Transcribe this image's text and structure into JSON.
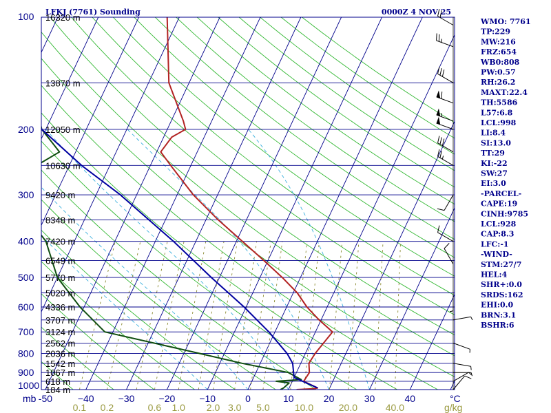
{
  "chart_data": {
    "type": "line",
    "title": "LFKJ (7761) Sounding",
    "time": "0000Z  4 NOV 25",
    "xlabel": "°C",
    "units_label": "mb",
    "mixing_ratio_units": "g/kg",
    "pressure_levels": [
      100,
      200,
      300,
      400,
      500,
      600,
      700,
      800,
      900,
      1000
    ],
    "temperature_ticks": [
      -50,
      -40,
      -30,
      -20,
      -10,
      0,
      10,
      20,
      30,
      40
    ],
    "temperature_tick_labels": [
      "-50",
      "−40",
      "−30",
      "−20",
      "−10",
      "0",
      "10",
      "20",
      "30",
      "40"
    ],
    "xlim_at_1000mb": [
      -51,
      51
    ],
    "mixing_ratio_labels": [
      "0.1",
      "0.2",
      "0.6",
      "1.0",
      "2.0",
      "3.0",
      "5.0",
      "10.0",
      "20.0",
      "40.0"
    ],
    "heights": [
      {
        "p": 100,
        "label": "16320 m"
      },
      {
        "p": 150,
        "label": "13870 m"
      },
      {
        "p": 200,
        "label": "12050 m"
      },
      {
        "p": 250,
        "label": "10630 m"
      },
      {
        "p": 300,
        "label": "9420 m"
      },
      {
        "p": 350,
        "label": "8348 m"
      },
      {
        "p": 400,
        "label": "7420 m"
      },
      {
        "p": 450,
        "label": "6549 m"
      },
      {
        "p": 500,
        "label": "5770 m"
      },
      {
        "p": 550,
        "label": "5020 m"
      },
      {
        "p": 600,
        "label": "4336 m"
      },
      {
        "p": 650,
        "label": "3707 m"
      },
      {
        "p": 700,
        "label": "3124 m"
      },
      {
        "p": 750,
        "label": "2562 m"
      },
      {
        "p": 800,
        "label": "2036 m"
      },
      {
        "p": 850,
        "label": "1542 m"
      },
      {
        "p": 900,
        "label": "1067 m"
      },
      {
        "p": 950,
        "label": "618 m"
      },
      {
        "p": 1000,
        "label": "184 m"
      }
    ],
    "series": [
      {
        "name": "temperature",
        "color": "#b22222",
        "points": [
          [
            1000,
            12
          ],
          [
            995,
            16
          ],
          [
            990,
            17
          ],
          [
            950,
            12.8
          ],
          [
            900,
            13.2
          ],
          [
            850,
            12
          ],
          [
            800,
            12.4
          ],
          [
            700,
            14.2
          ],
          [
            650,
            9.5
          ],
          [
            600,
            5
          ],
          [
            550,
            1
          ],
          [
            500,
            -4.5
          ],
          [
            450,
            -11
          ],
          [
            400,
            -18.5
          ],
          [
            350,
            -27
          ],
          [
            300,
            -36
          ],
          [
            250,
            -45
          ],
          [
            230,
            -49
          ],
          [
            210,
            -48
          ],
          [
            200,
            -45.5
          ],
          [
            190,
            -47
          ],
          [
            150,
            -55
          ],
          [
            100,
            -63
          ]
        ]
      },
      {
        "name": "dewpoint",
        "color": "#0f4d0f",
        "points": [
          [
            1000,
            8
          ],
          [
            990,
            8.6
          ],
          [
            960,
            9.4
          ],
          [
            950,
            6
          ],
          [
            940,
            12
          ],
          [
            900,
            8
          ],
          [
            850,
            -4.5
          ],
          [
            800,
            -16
          ],
          [
            700,
            -42
          ],
          [
            600,
            -51
          ],
          [
            500,
            -60
          ],
          [
            400,
            -67
          ],
          [
            350,
            -73.5
          ],
          [
            300,
            -80
          ],
          [
            260,
            -80
          ],
          [
            230,
            -74
          ],
          [
            200,
            -81
          ],
          [
            150,
            -89
          ],
          [
            100,
            -102
          ]
        ]
      },
      {
        "name": "parcel",
        "color": "#0000a0",
        "points": [
          [
            990,
            17
          ],
          [
            928,
            10
          ],
          [
            850,
            8
          ],
          [
            800,
            5.5
          ],
          [
            700,
            -1.5
          ],
          [
            600,
            -10.5
          ],
          [
            500,
            -22
          ],
          [
            400,
            -35.5
          ],
          [
            300,
            -54
          ],
          [
            250,
            -67
          ],
          [
            200,
            -81
          ],
          [
            150,
            -96
          ],
          [
            120,
            -106
          ]
        ]
      }
    ],
    "wind_barbs": [
      {
        "p": 1000,
        "dir": 40,
        "speed": 10
      },
      {
        "p": 950,
        "dir": 60,
        "speed": 5
      },
      {
        "p": 900,
        "dir": 90,
        "speed": 5
      },
      {
        "p": 850,
        "dir": 100,
        "speed": 5
      },
      {
        "p": 750,
        "dir": 110,
        "speed": 5
      },
      {
        "p": 650,
        "dir": 80,
        "speed": 5
      },
      {
        "p": 550,
        "dir": 180,
        "speed": 5
      },
      {
        "p": 460,
        "dir": 330,
        "speed": 10
      },
      {
        "p": 400,
        "dir": 300,
        "speed": 10
      },
      {
        "p": 300,
        "dir": 210,
        "speed": 10
      },
      {
        "p": 250,
        "dir": 300,
        "speed": 25
      },
      {
        "p": 230,
        "dir": 300,
        "speed": 30
      },
      {
        "p": 200,
        "dir": 290,
        "speed": 50
      },
      {
        "p": 190,
        "dir": 290,
        "speed": 55
      },
      {
        "p": 170,
        "dir": 290,
        "speed": 60
      },
      {
        "p": 150,
        "dir": 300,
        "speed": 30
      },
      {
        "p": 120,
        "dir": 290,
        "speed": 25
      },
      {
        "p": 105,
        "dir": 300,
        "speed": 20
      }
    ],
    "indices": [
      "WMO: 7761",
      "TP:229",
      "MW:216",
      "FRZ:654",
      "WB0:808",
      "PW:0.57",
      "RH:26.2",
      "MAXT:22.4",
      "TH:5586",
      "L57:6.8",
      "LCL:998",
      "LI:8.4",
      "SI:13.0",
      "TT:29",
      "KI:-22",
      "SW:27",
      "EI:3.0",
      "-PARCEL-",
      "CAPE:19",
      "CINH:9785",
      "LCL:928",
      "CAP:8.3",
      "LFC:-1",
      "-WIND-",
      "STM:27/7",
      "HEL:4",
      "SHR+:0.0",
      "SRDS:162",
      "EHI:0.0",
      "BRN:3.1",
      "BSHR:6"
    ]
  }
}
